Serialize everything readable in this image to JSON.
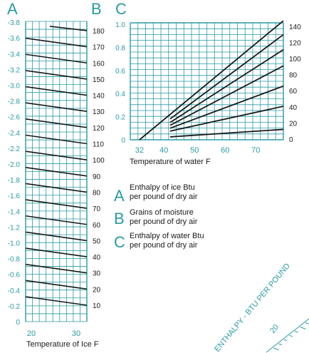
{
  "colors": {
    "accent": "#2a9aa6",
    "grid": "#2a9aa6",
    "ink": "#1a1a1a"
  },
  "chart_data": [
    {
      "type": "line",
      "panel": "A-B",
      "letters": [
        "A",
        "B"
      ],
      "left_scale_values": [
        "-3.8",
        "-3.6",
        "-3.4",
        "-3.2",
        "-3.0",
        "-2.8",
        "-2.6",
        "-2.4",
        "-2.2",
        "-2.0",
        "-1.8",
        "-1.6",
        "-1.4",
        "-1.2",
        "-1.0",
        "-0.8",
        "-0.6",
        "-0.4",
        "-0.2",
        "0"
      ],
      "right_scale_values": [
        "180",
        "170",
        "160",
        "150",
        "140",
        "130",
        "120",
        "110",
        "100",
        "90",
        "80",
        "70",
        "60",
        "50",
        "40",
        "30",
        "20",
        "10"
      ],
      "x_ticks": [
        "20",
        "30"
      ],
      "xlabel": "Temperature of Ice F",
      "xlim": [
        18,
        32
      ],
      "series": [
        {
          "left": -3.6,
          "right": 180
        },
        {
          "left": -3.4,
          "right": 170
        },
        {
          "left": -3.2,
          "right": 160
        },
        {
          "left": -3.0,
          "right": 150
        },
        {
          "left": -2.8,
          "right": 140
        },
        {
          "left": -2.6,
          "right": 130
        },
        {
          "left": -2.4,
          "right": 120
        },
        {
          "left": -2.2,
          "right": 110
        },
        {
          "left": -2.0,
          "right": 100
        },
        {
          "left": -1.8,
          "right": 90
        },
        {
          "left": -1.6,
          "right": 80
        },
        {
          "left": -1.4,
          "right": 70
        },
        {
          "left": -1.2,
          "right": 60
        },
        {
          "left": -1.0,
          "right": 50
        },
        {
          "left": -0.8,
          "right": 40
        },
        {
          "left": -0.6,
          "right": 30
        },
        {
          "left": -0.4,
          "right": 20
        },
        {
          "left": -0.2,
          "right": 10
        }
      ]
    },
    {
      "type": "line",
      "panel": "C",
      "letter": "C",
      "y_ticks": [
        "0",
        "0.2",
        "0.4",
        "0.6",
        "0.8",
        "1.0"
      ],
      "right_ticks": [
        "0",
        "20",
        "40",
        "60",
        "80",
        "100",
        "120",
        "140"
      ],
      "x_ticks": [
        "32",
        "40",
        "50",
        "60",
        "70"
      ],
      "xlabel": "Temperature of water F",
      "xlim": [
        29,
        79
      ],
      "ylim": [
        0,
        1.0
      ],
      "series": [
        {
          "grains": 0,
          "x": [
            42,
            79
          ],
          "y": [
            0.025,
            0.09
          ]
        },
        {
          "grains": 20,
          "x": [
            42,
            79
          ],
          "y": [
            0.075,
            0.29
          ]
        },
        {
          "grains": 40,
          "x": [
            42,
            79
          ],
          "y": [
            0.1,
            0.465
          ]
        },
        {
          "grains": 60,
          "x": [
            42,
            79
          ],
          "y": [
            0.125,
            0.64
          ]
        },
        {
          "grains": 80,
          "x": [
            42,
            79
          ],
          "y": [
            0.15,
            0.78
          ]
        },
        {
          "grains": 100,
          "x": [
            42,
            79
          ],
          "y": [
            0.18,
            0.91
          ]
        },
        {
          "grains": 120,
          "x": [
            32,
            79
          ],
          "y": [
            0.0,
            1.03
          ]
        }
      ]
    }
  ],
  "legend": [
    {
      "letter": "A",
      "line1": "Enthalpy of ice Btu",
      "line2": "per pound of dry air"
    },
    {
      "letter": "B",
      "line1": "Grains of moisture",
      "line2": "per pound of dry air"
    },
    {
      "letter": "C",
      "line1": "Enthalpy of water Btu",
      "line2": "per pound of dry air"
    }
  ],
  "corner": {
    "label": "ENTHALPY - BTU PER POUND",
    "tick": "20"
  }
}
